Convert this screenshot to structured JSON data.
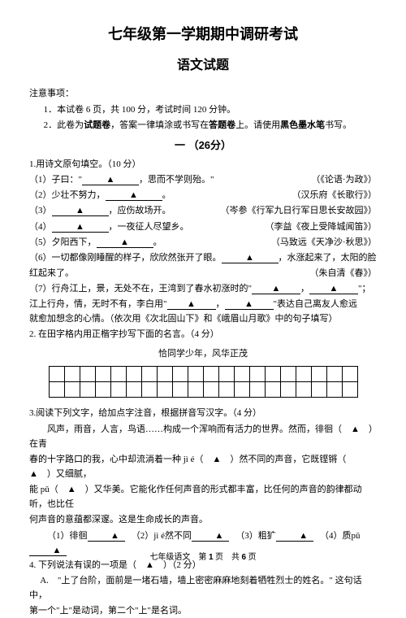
{
  "title_main": "七年级第一学期期中调研考试",
  "title_sub": "语文试题",
  "notice_heading": "注意事项：",
  "notice1": "1．本试卷 6 页，共 100 分，考试时间 120 分钟。",
  "notice2_a": "2．此卷为",
  "notice2_b": "试题卷",
  "notice2_c": "，答案一律填涂或书写在",
  "notice2_d": "答题卷",
  "notice2_e": "上。请使用",
  "notice2_f": "黑色墨水笔",
  "notice2_g": "书写。",
  "section1": "一 （26分）",
  "q1": "1.用诗文原句填空。（10 分）",
  "q1_1_a": "（1）子曰：\"",
  "q1_1_b": "，思而不学则殆。\"",
  "q1_1_src": "（《论语·为政》）",
  "q1_2_a": "（2）少壮不努力，",
  "q1_2_b": "。",
  "q1_2_src": "（汉乐府《长歌行》）",
  "q1_3_a": "（3）",
  "q1_3_b": "，应伤故场开。",
  "q1_3_src": "（岑参《行军九日行军日思长安故园》）",
  "q1_4_a": "（4）",
  "q1_4_b": "，一夜征人尽望乡。",
  "q1_4_src": "（李益《夜上受降城闻笛》）",
  "q1_5_a": "（5）夕阳西下，",
  "q1_5_b": "。",
  "q1_5_src": "（马致远《天净沙·秋思》）",
  "q1_6_a": "（6）一切都像刚睡醒的样子，欣欣然张开了眼。",
  "q1_6_b": "，水涨起来了，太阳的脸",
  "q1_6_c": "红起来了。",
  "q1_6_src": "（朱自清《春》）",
  "q1_7": "（7）行舟江上，景，无处不在，王湾到了春水初涨时的\"",
  "q1_7b": "，",
  "q1_7c": "\"；",
  "q1_7d": "江上行舟，情，无时不有，李白用\"",
  "q1_7e": "，",
  "q1_7f": "\"表达自己离友人愈远",
  "q1_7g": "就愈加想念的心情。（依次用《次北固山下》和《峨眉山月歌》中的句子填写）",
  "q2": "2. 在田字格内用正楷字抄写下面的名言。（4 分）",
  "couplet": "恰同学少年，风华正茂",
  "q3": "3.阅读下列文字，给加点字注音，根据拼音写汉字。（4 分）",
  "p3a": "风声，雨音，人言，鸟语……构成一个浑响而有活力的世界。然而，徘徊（　▲　）在青",
  "p3b": "春的十字路口的我，心中却流淌着一种 jì é（　▲　）然不同的声音，它既铿锵（　▲　）又细腻，",
  "p3c": "能 pǔ（　▲　）又华美。它能化作任何声音的形式都丰富，比任何的声音的韵律都动听，也比任",
  "p3d": "何声音的意蕴都深邃。这是生命成长的声音。",
  "c1": "（1）徘徊",
  "c2": "（2）jì é然不同",
  "c3": "（3）粗犷",
  "c4": "（4）质pǔ",
  "q4": "4. 下列说法有误的一项是（　▲　）（2 分）",
  "q4A_a": "A.　\"上了台阶，面前是一堵石墙，墙上密密麻麻地刻着牺牲烈士的姓名。\" 这句话中，",
  "q4A_b": "第一个\"上\"是动词，第二个\"上\"是名词。",
  "footer_a": "七年级语文　第 ",
  "footer_b": "1",
  "footer_c": " 页　共 ",
  "footer_d": "6",
  "footer_e": " 页",
  "triangle": "▲"
}
